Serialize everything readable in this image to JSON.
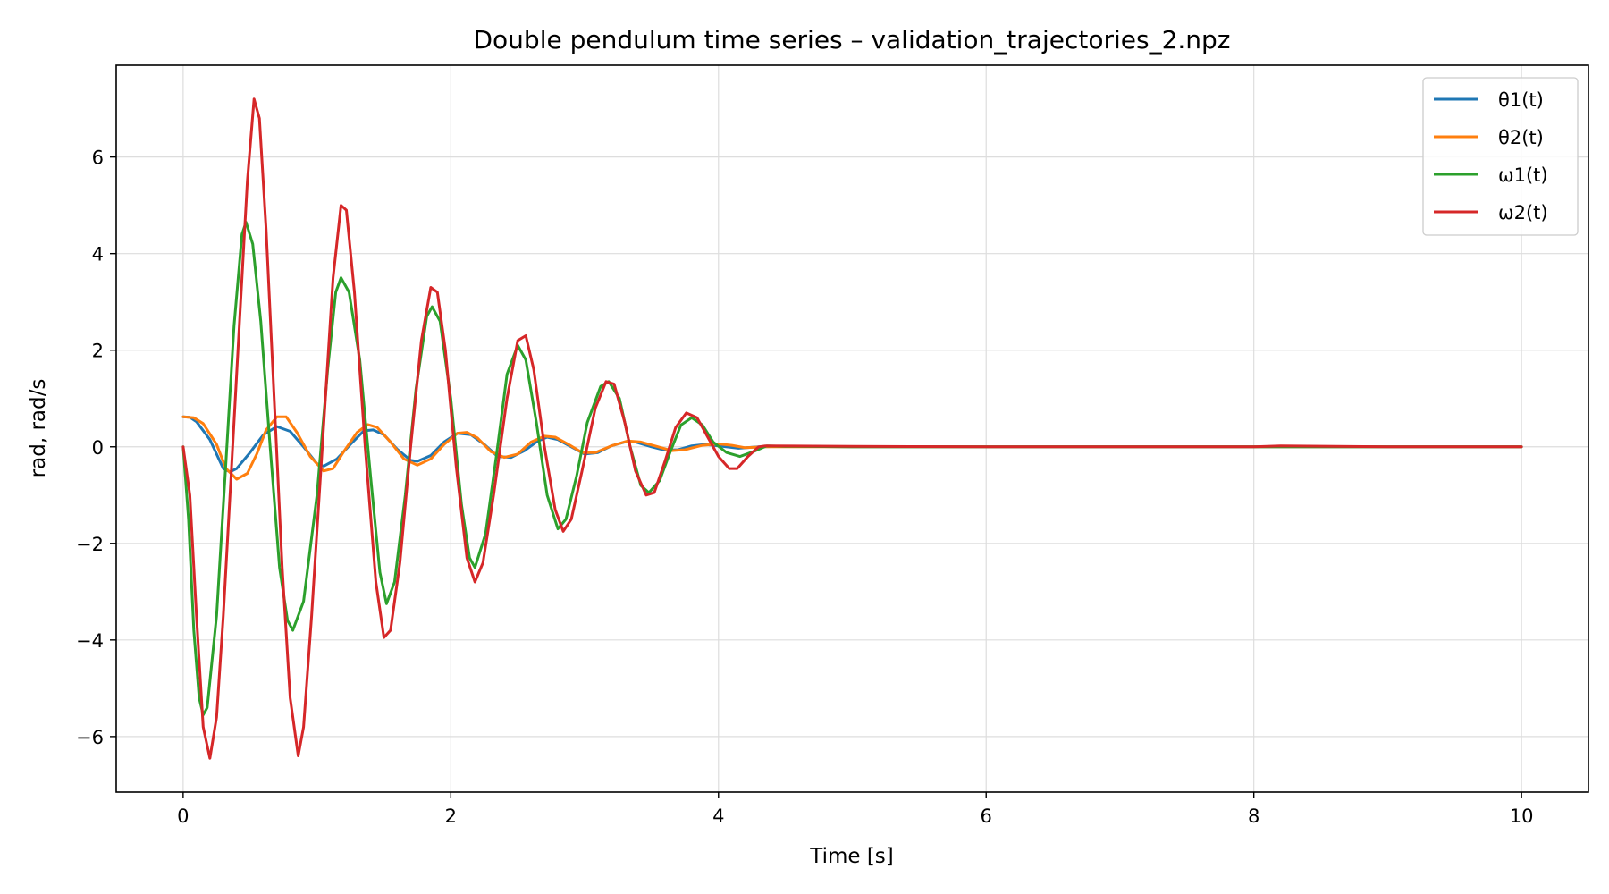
{
  "chart_data": {
    "type": "line",
    "title": "Double pendulum time series – validation_trajectories_2.npz",
    "xlabel": "Time [s]",
    "ylabel": "rad, rad/s",
    "xlim": [
      -0.5,
      10.5
    ],
    "ylim": [
      -7.15,
      7.9
    ],
    "xticks": [
      0,
      2,
      4,
      6,
      8,
      10
    ],
    "xtick_labels": [
      "0",
      "2",
      "4",
      "6",
      "8",
      "10"
    ],
    "yticks": [
      -6,
      -4,
      -2,
      0,
      2,
      4,
      6
    ],
    "ytick_labels": [
      "−6",
      "−4",
      "−2",
      "0",
      "2",
      "4",
      "6"
    ],
    "grid": true,
    "legend_position": "top-right",
    "series": [
      {
        "name": "θ1(t)",
        "color": "#1f77b4",
        "points": [
          [
            0,
            0.62
          ],
          [
            0.05,
            0.61
          ],
          [
            0.1,
            0.52
          ],
          [
            0.2,
            0.15
          ],
          [
            0.3,
            -0.45
          ],
          [
            0.35,
            -0.52
          ],
          [
            0.4,
            -0.45
          ],
          [
            0.5,
            -0.12
          ],
          [
            0.6,
            0.25
          ],
          [
            0.7,
            0.42
          ],
          [
            0.8,
            0.32
          ],
          [
            0.9,
            0.0
          ],
          [
            1.0,
            -0.35
          ],
          [
            1.05,
            -0.4
          ],
          [
            1.15,
            -0.25
          ],
          [
            1.25,
            0.05
          ],
          [
            1.35,
            0.33
          ],
          [
            1.42,
            0.35
          ],
          [
            1.5,
            0.25
          ],
          [
            1.6,
            -0.05
          ],
          [
            1.7,
            -0.28
          ],
          [
            1.75,
            -0.3
          ],
          [
            1.85,
            -0.18
          ],
          [
            1.95,
            0.1
          ],
          [
            2.05,
            0.28
          ],
          [
            2.15,
            0.25
          ],
          [
            2.25,
            0.05
          ],
          [
            2.35,
            -0.2
          ],
          [
            2.45,
            -0.22
          ],
          [
            2.55,
            -0.08
          ],
          [
            2.65,
            0.12
          ],
          [
            2.72,
            0.2
          ],
          [
            2.8,
            0.15
          ],
          [
            2.9,
            0.0
          ],
          [
            3.0,
            -0.15
          ],
          [
            3.1,
            -0.12
          ],
          [
            3.2,
            0.02
          ],
          [
            3.3,
            0.1
          ],
          [
            3.38,
            0.1
          ],
          [
            3.5,
            0.0
          ],
          [
            3.6,
            -0.07
          ],
          [
            3.7,
            -0.06
          ],
          [
            3.8,
            0.02
          ],
          [
            3.9,
            0.05
          ],
          [
            4.0,
            0.02
          ],
          [
            4.15,
            -0.03
          ],
          [
            4.3,
            0.0
          ],
          [
            4.5,
            0.01
          ],
          [
            5.0,
            0.0
          ],
          [
            6.0,
            0.0
          ],
          [
            7.0,
            0.0
          ],
          [
            8.0,
            0.0
          ],
          [
            9.0,
            0.0
          ],
          [
            10.0,
            0.0
          ]
        ]
      },
      {
        "name": "θ2(t)",
        "color": "#ff7f0e",
        "points": [
          [
            0,
            0.62
          ],
          [
            0.08,
            0.6
          ],
          [
            0.15,
            0.48
          ],
          [
            0.25,
            0.05
          ],
          [
            0.32,
            -0.45
          ],
          [
            0.4,
            -0.67
          ],
          [
            0.48,
            -0.55
          ],
          [
            0.55,
            -0.15
          ],
          [
            0.62,
            0.35
          ],
          [
            0.7,
            0.62
          ],
          [
            0.77,
            0.62
          ],
          [
            0.85,
            0.3
          ],
          [
            0.95,
            -0.2
          ],
          [
            1.05,
            -0.5
          ],
          [
            1.12,
            -0.45
          ],
          [
            1.2,
            -0.1
          ],
          [
            1.3,
            0.3
          ],
          [
            1.38,
            0.46
          ],
          [
            1.45,
            0.4
          ],
          [
            1.55,
            0.1
          ],
          [
            1.65,
            -0.25
          ],
          [
            1.75,
            -0.38
          ],
          [
            1.85,
            -0.25
          ],
          [
            1.95,
            0.05
          ],
          [
            2.05,
            0.28
          ],
          [
            2.12,
            0.3
          ],
          [
            2.2,
            0.18
          ],
          [
            2.3,
            -0.1
          ],
          [
            2.4,
            -0.22
          ],
          [
            2.5,
            -0.15
          ],
          [
            2.6,
            0.1
          ],
          [
            2.7,
            0.22
          ],
          [
            2.78,
            0.2
          ],
          [
            2.88,
            0.05
          ],
          [
            2.98,
            -0.12
          ],
          [
            3.08,
            -0.12
          ],
          [
            3.2,
            0.02
          ],
          [
            3.32,
            0.12
          ],
          [
            3.42,
            0.1
          ],
          [
            3.55,
            0.0
          ],
          [
            3.65,
            -0.08
          ],
          [
            3.75,
            -0.06
          ],
          [
            3.88,
            0.03
          ],
          [
            4.0,
            0.06
          ],
          [
            4.1,
            0.03
          ],
          [
            4.2,
            -0.02
          ],
          [
            4.35,
            0.0
          ],
          [
            5.0,
            0.0
          ],
          [
            6.0,
            0.0
          ],
          [
            7.0,
            0.0
          ],
          [
            8.0,
            0.0
          ],
          [
            9.0,
            0.0
          ],
          [
            10.0,
            0.0
          ]
        ]
      },
      {
        "name": "ω1(t)",
        "color": "#2ca02c",
        "points": [
          [
            0,
            0.0
          ],
          [
            0.04,
            -1.5
          ],
          [
            0.08,
            -3.8
          ],
          [
            0.12,
            -5.2
          ],
          [
            0.15,
            -5.55
          ],
          [
            0.18,
            -5.4
          ],
          [
            0.25,
            -3.5
          ],
          [
            0.32,
            -0.3
          ],
          [
            0.38,
            2.5
          ],
          [
            0.44,
            4.4
          ],
          [
            0.47,
            4.65
          ],
          [
            0.52,
            4.2
          ],
          [
            0.58,
            2.6
          ],
          [
            0.65,
            0.0
          ],
          [
            0.72,
            -2.5
          ],
          [
            0.78,
            -3.6
          ],
          [
            0.82,
            -3.8
          ],
          [
            0.9,
            -3.2
          ],
          [
            1.0,
            -1.0
          ],
          [
            1.08,
            1.6
          ],
          [
            1.14,
            3.2
          ],
          [
            1.18,
            3.5
          ],
          [
            1.24,
            3.2
          ],
          [
            1.32,
            1.8
          ],
          [
            1.4,
            -0.6
          ],
          [
            1.47,
            -2.6
          ],
          [
            1.52,
            -3.25
          ],
          [
            1.58,
            -2.8
          ],
          [
            1.66,
            -1.0
          ],
          [
            1.74,
            1.2
          ],
          [
            1.82,
            2.7
          ],
          [
            1.86,
            2.9
          ],
          [
            1.92,
            2.6
          ],
          [
            2.0,
            1.0
          ],
          [
            2.08,
            -1.2
          ],
          [
            2.14,
            -2.3
          ],
          [
            2.18,
            -2.5
          ],
          [
            2.26,
            -1.8
          ],
          [
            2.34,
            -0.2
          ],
          [
            2.42,
            1.5
          ],
          [
            2.5,
            2.1
          ],
          [
            2.56,
            1.8
          ],
          [
            2.64,
            0.5
          ],
          [
            2.72,
            -1.0
          ],
          [
            2.8,
            -1.7
          ],
          [
            2.86,
            -1.5
          ],
          [
            2.94,
            -0.6
          ],
          [
            3.02,
            0.5
          ],
          [
            3.12,
            1.25
          ],
          [
            3.18,
            1.35
          ],
          [
            3.26,
            1.0
          ],
          [
            3.34,
            0.0
          ],
          [
            3.42,
            -0.8
          ],
          [
            3.48,
            -0.95
          ],
          [
            3.56,
            -0.7
          ],
          [
            3.64,
            -0.1
          ],
          [
            3.72,
            0.45
          ],
          [
            3.8,
            0.6
          ],
          [
            3.88,
            0.45
          ],
          [
            3.96,
            0.1
          ],
          [
            4.06,
            -0.12
          ],
          [
            4.16,
            -0.2
          ],
          [
            4.26,
            -0.1
          ],
          [
            4.36,
            0.02
          ],
          [
            4.5,
            0.01
          ],
          [
            5.0,
            0.0
          ],
          [
            6.0,
            0.0
          ],
          [
            7.0,
            0.0
          ],
          [
            8.0,
            0.0
          ],
          [
            9.0,
            0.0
          ],
          [
            10.0,
            0.0
          ]
        ]
      },
      {
        "name": "ω2(t)",
        "color": "#d62728",
        "points": [
          [
            0,
            0.0
          ],
          [
            0.05,
            -1.0
          ],
          [
            0.1,
            -3.5
          ],
          [
            0.15,
            -5.8
          ],
          [
            0.2,
            -6.45
          ],
          [
            0.25,
            -5.6
          ],
          [
            0.3,
            -3.5
          ],
          [
            0.35,
            -1.0
          ],
          [
            0.42,
            2.5
          ],
          [
            0.48,
            5.5
          ],
          [
            0.53,
            7.2
          ],
          [
            0.57,
            6.8
          ],
          [
            0.62,
            4.5
          ],
          [
            0.68,
            1.0
          ],
          [
            0.74,
            -2.5
          ],
          [
            0.8,
            -5.2
          ],
          [
            0.86,
            -6.4
          ],
          [
            0.9,
            -5.8
          ],
          [
            0.96,
            -3.5
          ],
          [
            1.04,
            0.0
          ],
          [
            1.12,
            3.5
          ],
          [
            1.18,
            5.0
          ],
          [
            1.22,
            4.9
          ],
          [
            1.28,
            3.2
          ],
          [
            1.36,
            0.0
          ],
          [
            1.44,
            -2.8
          ],
          [
            1.5,
            -3.95
          ],
          [
            1.55,
            -3.8
          ],
          [
            1.62,
            -2.4
          ],
          [
            1.7,
            0.0
          ],
          [
            1.78,
            2.2
          ],
          [
            1.85,
            3.3
          ],
          [
            1.9,
            3.2
          ],
          [
            1.96,
            2.0
          ],
          [
            2.04,
            -0.4
          ],
          [
            2.12,
            -2.3
          ],
          [
            2.18,
            -2.8
          ],
          [
            2.24,
            -2.4
          ],
          [
            2.32,
            -1.0
          ],
          [
            2.42,
            1.0
          ],
          [
            2.5,
            2.2
          ],
          [
            2.56,
            2.3
          ],
          [
            2.62,
            1.6
          ],
          [
            2.7,
            0.0
          ],
          [
            2.78,
            -1.3
          ],
          [
            2.84,
            -1.75
          ],
          [
            2.9,
            -1.5
          ],
          [
            2.98,
            -0.5
          ],
          [
            3.08,
            0.8
          ],
          [
            3.16,
            1.35
          ],
          [
            3.22,
            1.3
          ],
          [
            3.3,
            0.5
          ],
          [
            3.38,
            -0.5
          ],
          [
            3.46,
            -1.0
          ],
          [
            3.52,
            -0.95
          ],
          [
            3.6,
            -0.3
          ],
          [
            3.68,
            0.4
          ],
          [
            3.76,
            0.7
          ],
          [
            3.84,
            0.6
          ],
          [
            3.92,
            0.2
          ],
          [
            4.0,
            -0.2
          ],
          [
            4.08,
            -0.45
          ],
          [
            4.14,
            -0.45
          ],
          [
            4.22,
            -0.2
          ],
          [
            4.3,
            0.0
          ],
          [
            4.35,
            0.02
          ],
          [
            5.0,
            0.01
          ],
          [
            6.0,
            0.0
          ],
          [
            7.0,
            0.0
          ],
          [
            8.0,
            0.0
          ],
          [
            8.2,
            0.02
          ],
          [
            9.0,
            0.0
          ],
          [
            10.0,
            0.0
          ]
        ]
      }
    ]
  }
}
